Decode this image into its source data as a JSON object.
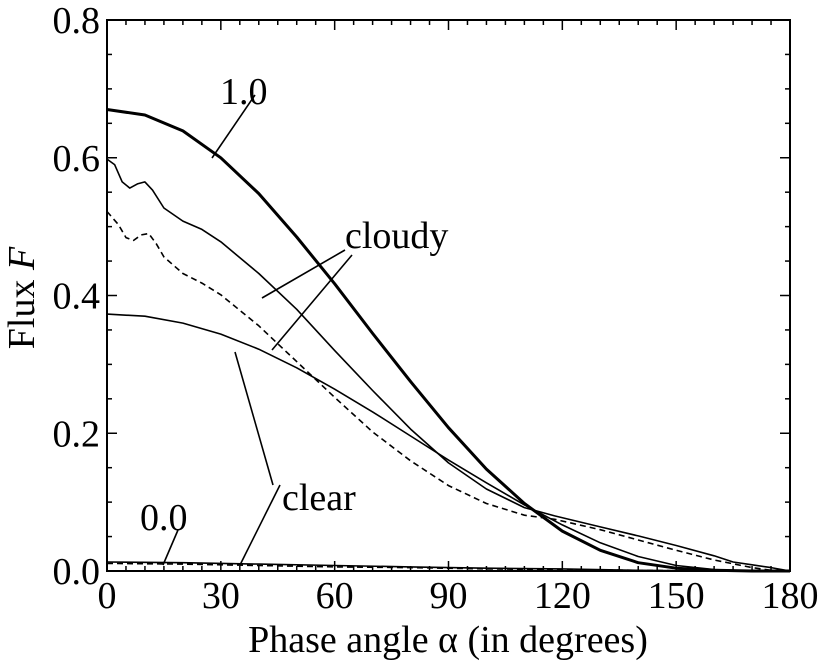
{
  "chart_data": {
    "type": "line",
    "xlabel": "Phase angle α (in degrees)",
    "ylabel_main": "Flux ",
    "ylabel_var": "F",
    "xlim": [
      0,
      180
    ],
    "ylim": [
      0,
      0.8
    ],
    "x_ticks": [
      0,
      30,
      60,
      90,
      120,
      150,
      180
    ],
    "x_tick_labels": [
      "0",
      "30",
      "60",
      "90",
      "120",
      "150",
      "180"
    ],
    "y_ticks": [
      0.0,
      0.2,
      0.4,
      0.6,
      0.8
    ],
    "y_tick_labels": [
      "0.0",
      "0.2",
      "0.4",
      "0.6",
      "0.8"
    ],
    "grid": false,
    "legend": "none",
    "annotations": {
      "a10": "1.0",
      "cloudy": "cloudy",
      "clear": "clear",
      "a00": "0.0"
    },
    "series": [
      {
        "style": "thick-solid",
        "x": [
          0,
          10,
          20,
          30,
          40,
          50,
          60,
          70,
          80,
          90,
          100,
          110,
          120,
          130,
          140,
          150,
          160,
          170,
          180
        ],
        "y": [
          0.67,
          0.662,
          0.639,
          0.6,
          0.548,
          0.485,
          0.417,
          0.345,
          0.275,
          0.208,
          0.148,
          0.098,
          0.058,
          0.03,
          0.012,
          0.004,
          0.001,
          0.0,
          0.0
        ]
      },
      {
        "style": "thin-solid",
        "x": [
          0,
          2,
          4,
          6,
          8,
          10,
          12,
          15,
          20,
          25,
          30,
          40,
          50,
          60,
          70,
          80,
          90,
          100,
          110,
          118,
          130,
          140,
          150,
          160,
          165,
          170,
          175,
          180
        ],
        "y": [
          0.598,
          0.59,
          0.565,
          0.556,
          0.562,
          0.565,
          0.553,
          0.527,
          0.508,
          0.496,
          0.478,
          0.432,
          0.38,
          0.32,
          0.262,
          0.206,
          0.157,
          0.119,
          0.092,
          0.08,
          0.064,
          0.051,
          0.037,
          0.022,
          0.013,
          0.009,
          0.005,
          0.0
        ]
      },
      {
        "style": "dashed",
        "x": [
          0,
          3,
          5,
          7,
          9,
          11,
          13,
          15,
          20,
          25,
          30,
          40,
          50,
          60,
          70,
          80,
          90,
          100,
          110,
          118,
          130,
          140,
          150,
          160,
          170,
          175,
          180
        ],
        "y": [
          0.522,
          0.503,
          0.484,
          0.48,
          0.488,
          0.49,
          0.475,
          0.456,
          0.432,
          0.418,
          0.401,
          0.356,
          0.304,
          0.252,
          0.202,
          0.16,
          0.124,
          0.098,
          0.081,
          0.075,
          0.06,
          0.045,
          0.03,
          0.016,
          0.005,
          0.001,
          0.0
        ]
      },
      {
        "style": "thin-solid",
        "x": [
          0,
          10,
          20,
          30,
          40,
          50,
          60,
          70,
          80,
          90,
          100,
          110,
          120,
          130,
          140,
          150,
          160,
          170,
          180
        ],
        "y": [
          0.373,
          0.37,
          0.36,
          0.344,
          0.322,
          0.295,
          0.264,
          0.231,
          0.196,
          0.161,
          0.128,
          0.096,
          0.067,
          0.041,
          0.021,
          0.008,
          0.002,
          0.0,
          0.0
        ]
      },
      {
        "style": "thin-solid",
        "x": [
          0,
          20,
          40,
          60,
          80,
          100,
          120,
          140,
          160,
          180
        ],
        "y": [
          0.013,
          0.012,
          0.01,
          0.008,
          0.006,
          0.004,
          0.003,
          0.001,
          0.0,
          0.0
        ]
      },
      {
        "style": "dashed",
        "x": [
          0,
          20,
          40,
          60,
          80,
          100,
          120,
          140,
          160,
          180
        ],
        "y": [
          0.011,
          0.01,
          0.008,
          0.006,
          0.005,
          0.003,
          0.002,
          0.001,
          0.0,
          0.0
        ]
      }
    ]
  }
}
